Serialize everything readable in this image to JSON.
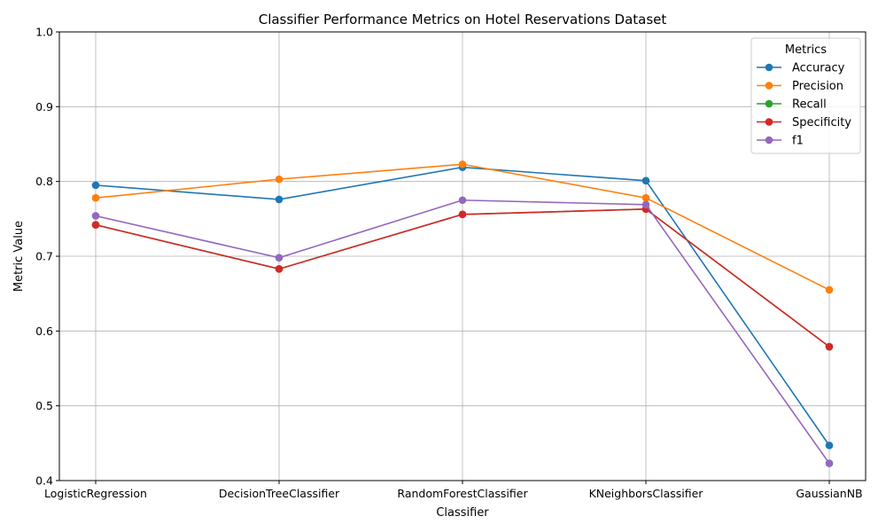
{
  "chart_data": {
    "type": "line",
    "title": "Classifier Performance Metrics on Hotel Reservations Dataset",
    "xlabel": "Classifier",
    "ylabel": "Metric Value",
    "categories": [
      "LogisticRegression",
      "DecisionTreeClassifier",
      "RandomForestClassifier",
      "KNeighborsClassifier",
      "GaussianNB"
    ],
    "ylim": [
      0.4,
      1.0
    ],
    "yticks": [
      "0.4",
      "0.5",
      "0.6",
      "0.7",
      "0.8",
      "0.9",
      "1.0"
    ],
    "grid": true,
    "legend": {
      "title": "Metrics",
      "placement": "top-right"
    },
    "series": [
      {
        "name": "Accuracy",
        "color": "#1f77b4",
        "values": [
          0.795,
          0.776,
          0.819,
          0.801,
          0.447
        ]
      },
      {
        "name": "Precision",
        "color": "#ff7f0e",
        "values": [
          0.778,
          0.803,
          0.823,
          0.778,
          0.655
        ]
      },
      {
        "name": "Recall",
        "color": "#2ca02c",
        "values": [
          0.742,
          0.683,
          0.756,
          0.763,
          0.579
        ]
      },
      {
        "name": "Specificity",
        "color": "#d62728",
        "values": [
          0.742,
          0.683,
          0.756,
          0.763,
          0.579
        ]
      },
      {
        "name": "f1",
        "color": "#9467bd",
        "values": [
          0.754,
          0.698,
          0.775,
          0.769,
          0.423
        ]
      }
    ]
  }
}
